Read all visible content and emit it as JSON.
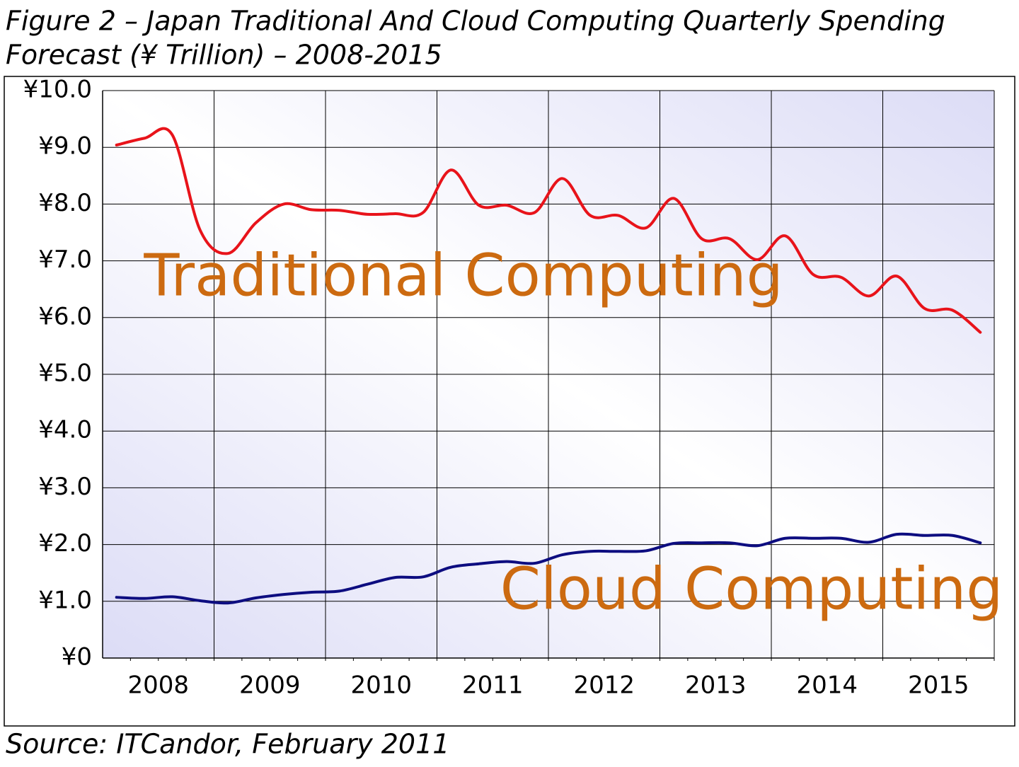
{
  "chart_data": {
    "type": "line",
    "title": [
      "Figure 2 – Japan Traditional And Cloud Computing Quarterly Spending",
      "Forecast (¥ Trillion) – 2008-2015"
    ],
    "source": "Source: ITCandor, February 2011",
    "categories": [
      "2008",
      null,
      null,
      null,
      "2009",
      null,
      null,
      null,
      "2010",
      null,
      null,
      null,
      "2011",
      null,
      null,
      null,
      "2012",
      null,
      null,
      null,
      "2013",
      null,
      null,
      null,
      "2014",
      null,
      null,
      null,
      "2015",
      null,
      null,
      null
    ],
    "series": [
      {
        "name": "Traditional Computing",
        "color": "#e8131a",
        "label_color": "#cc6a10",
        "values": [
          9.04,
          9.16,
          9.22,
          7.54,
          7.13,
          7.67,
          8.0,
          7.9,
          7.89,
          7.82,
          7.83,
          7.85,
          8.6,
          7.98,
          7.98,
          7.85,
          8.45,
          7.8,
          7.8,
          7.58,
          8.1,
          7.39,
          7.39,
          7.02,
          7.44,
          6.76,
          6.71,
          6.38,
          6.73,
          6.16,
          6.13,
          5.74
        ]
      },
      {
        "name": "Cloud Computing",
        "color": "#0d0d80",
        "label_color": "#cc6a10",
        "values": [
          1.07,
          1.05,
          1.08,
          1.01,
          0.97,
          1.06,
          1.12,
          1.16,
          1.18,
          1.3,
          1.42,
          1.43,
          1.6,
          1.66,
          1.7,
          1.67,
          1.82,
          1.88,
          1.88,
          1.89,
          2.02,
          2.03,
          2.03,
          1.98,
          2.11,
          2.11,
          2.11,
          2.04,
          2.18,
          2.16,
          2.16,
          2.03
        ]
      }
    ],
    "ylim": [
      0,
      10
    ],
    "yticks": [
      {
        "value": 0,
        "label": "¥0"
      },
      {
        "value": 1,
        "label": "¥1.0"
      },
      {
        "value": 2,
        "label": "¥2.0"
      },
      {
        "value": 3,
        "label": "¥3.0"
      },
      {
        "value": 4,
        "label": "¥4.0"
      },
      {
        "value": 5,
        "label": "¥5.0"
      },
      {
        "value": 6,
        "label": "¥6.0"
      },
      {
        "value": 7,
        "label": "¥7.0"
      },
      {
        "value": 8,
        "label": "¥8.0"
      },
      {
        "value": 9,
        "label": "¥9.0"
      },
      {
        "value": 10,
        "label": "¥10.0"
      }
    ],
    "grid": true
  }
}
